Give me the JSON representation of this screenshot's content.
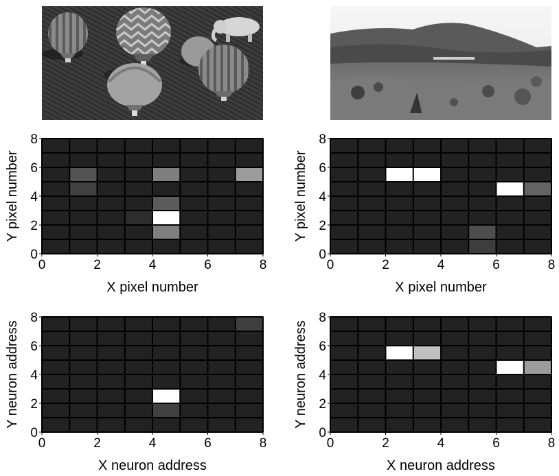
{
  "photos": [
    {
      "name": "hot-air-balloons-photo"
    },
    {
      "name": "mountain-landscape-photo"
    }
  ],
  "chart_data": [
    {
      "type": "heatmap",
      "xlabel": "X pixel number",
      "ylabel": "Y pixel number",
      "xlim": [
        0,
        8
      ],
      "ylim": [
        0,
        8
      ],
      "xticks": [
        0,
        2,
        4,
        6,
        8
      ],
      "yticks": [
        0,
        2,
        4,
        6,
        8
      ],
      "grid": true,
      "background_color": "#222222",
      "cells": [
        {
          "x": 1,
          "y": 5,
          "value": 0.22
        },
        {
          "x": 1,
          "y": 4,
          "value": 0.14
        },
        {
          "x": 4,
          "y": 5,
          "value": 0.42
        },
        {
          "x": 7,
          "y": 5,
          "value": 0.55
        },
        {
          "x": 4,
          "y": 3,
          "value": 0.26
        },
        {
          "x": 3,
          "y": 2,
          "value": 0.05
        },
        {
          "x": 4,
          "y": 2,
          "value": 1.0
        },
        {
          "x": 4,
          "y": 1,
          "value": 0.42
        }
      ]
    },
    {
      "type": "heatmap",
      "xlabel": "X pixel number",
      "ylabel": "Y pixel number",
      "xlim": [
        0,
        8
      ],
      "ylim": [
        0,
        8
      ],
      "xticks": [
        0,
        2,
        4,
        6,
        8
      ],
      "yticks": [
        0,
        2,
        4,
        6,
        8
      ],
      "grid": true,
      "background_color": "#222222",
      "cells": [
        {
          "x": 2,
          "y": 5,
          "value": 1.0
        },
        {
          "x": 3,
          "y": 5,
          "value": 1.0
        },
        {
          "x": 6,
          "y": 4,
          "value": 1.0
        },
        {
          "x": 7,
          "y": 4,
          "value": 0.3
        },
        {
          "x": 5,
          "y": 1,
          "value": 0.2
        },
        {
          "x": 5,
          "y": 0,
          "value": 0.12
        }
      ]
    },
    {
      "type": "heatmap",
      "xlabel": "X neuron address",
      "ylabel": "Y neuron address",
      "xlim": [
        0,
        8
      ],
      "ylim": [
        0,
        8
      ],
      "xticks": [
        0,
        2,
        4,
        6,
        8
      ],
      "yticks": [
        0,
        2,
        4,
        6,
        8
      ],
      "grid": true,
      "background_color": "#222222",
      "cells": [
        {
          "x": 7,
          "y": 7,
          "value": 0.13
        },
        {
          "x": 4,
          "y": 2,
          "value": 1.0
        },
        {
          "x": 4,
          "y": 1,
          "value": 0.14
        }
      ]
    },
    {
      "type": "heatmap",
      "xlabel": "X neuron address",
      "ylabel": "Y neuron address",
      "xlim": [
        0,
        8
      ],
      "ylim": [
        0,
        8
      ],
      "xticks": [
        0,
        2,
        4,
        6,
        8
      ],
      "yticks": [
        0,
        2,
        4,
        6,
        8
      ],
      "grid": true,
      "background_color": "#222222",
      "cells": [
        {
          "x": 2,
          "y": 5,
          "value": 1.0
        },
        {
          "x": 3,
          "y": 5,
          "value": 0.72
        },
        {
          "x": 6,
          "y": 4,
          "value": 1.0
        },
        {
          "x": 7,
          "y": 4,
          "value": 0.55
        }
      ]
    }
  ]
}
